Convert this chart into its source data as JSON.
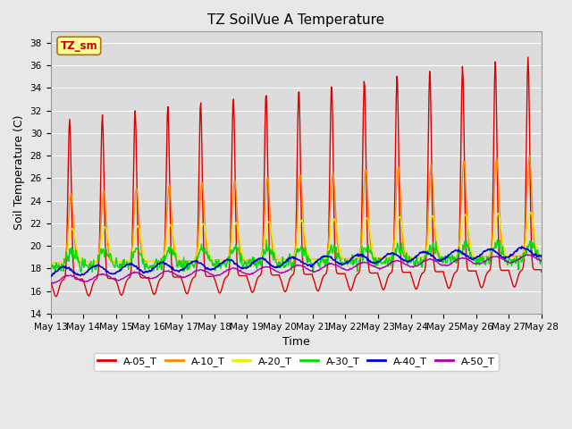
{
  "title": "TZ SoilVue A Temperature",
  "xlabel": "Time",
  "ylabel": "Soil Temperature (C)",
  "ylim": [
    14,
    39
  ],
  "yticks": [
    14,
    16,
    18,
    20,
    22,
    24,
    26,
    28,
    30,
    32,
    34,
    36,
    38
  ],
  "series": {
    "A-05_T": {
      "color": "#dd0000",
      "lw": 1.0
    },
    "A-10_T": {
      "color": "#ff8800",
      "lw": 1.0
    },
    "A-20_T": {
      "color": "#eeee00",
      "lw": 1.0
    },
    "A-30_T": {
      "color": "#00dd00",
      "lw": 1.0
    },
    "A-40_T": {
      "color": "#0000dd",
      "lw": 1.2
    },
    "A-50_T": {
      "color": "#aa00aa",
      "lw": 1.0
    }
  },
  "legend_label": "TZ_sm",
  "legend_box_facecolor": "#ffff99",
  "legend_box_edgecolor": "#aa7700",
  "fig_facecolor": "#e8e8e8",
  "plot_facecolor": "#dcdcdc",
  "grid_color": "#ffffff",
  "title_fontsize": 11,
  "axis_label_fontsize": 9,
  "tick_fontsize": 7.5,
  "figsize": [
    6.4,
    4.8
  ],
  "dpi": 100
}
